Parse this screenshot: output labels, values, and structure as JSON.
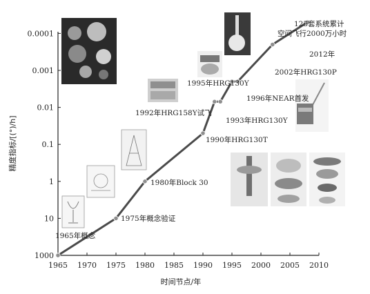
{
  "chart_data": {
    "type": "line",
    "title": "",
    "xlabel": "时间节点/年",
    "ylabel": "精度指标/[(°)/h]",
    "x_ticks": [
      "1965",
      "1970",
      "1975",
      "1980",
      "1985",
      "1990",
      "1995",
      "2000",
      "2005",
      "2010"
    ],
    "y_ticks": [
      "0.0001",
      "0.001",
      "0.01",
      "0.1",
      "1",
      "10",
      "1000"
    ],
    "y_scale": "log (reversed: higher precision upward)",
    "xlim": [
      1965,
      2010
    ],
    "grid": false,
    "colors": {
      "line": "#4a4a4a",
      "marker": "#8f8f8f",
      "text": "#222222"
    },
    "series": [
      {
        "values": [
          {
            "x": 1965,
            "y": 100
          },
          {
            "x": 1975,
            "y": 10
          },
          {
            "x": 1980,
            "y": 1
          },
          {
            "x": 1990,
            "y": 0.05
          },
          {
            "x": 1992,
            "y": 0.007
          },
          {
            "x": 1993,
            "y": 0.007
          },
          {
            "x": 1995,
            "y": 0.002
          },
          {
            "x": 1996,
            "y": 0.002
          },
          {
            "x": 2002,
            "y": 0.0002
          },
          {
            "x": 2008,
            "y": 5e-05
          }
        ]
      }
    ],
    "annotations": [
      {
        "text": "1965年概念"
      },
      {
        "text": "1975年概念验证"
      },
      {
        "text": "1980年Block 30"
      },
      {
        "text": "1990年HRG130T"
      },
      {
        "text": "1992年HRG158Y试飞"
      },
      {
        "text": "1993年HRG130Y"
      },
      {
        "text": "1995年HRG130Y"
      },
      {
        "text": "1996年NEAR首发"
      },
      {
        "text": "2002年HRG130P"
      },
      {
        "text": "2012年"
      },
      {
        "text": "125套系统累计"
      },
      {
        "text": "空间飞行2000万小时"
      }
    ],
    "images": [
      {
        "icon": "goblet-prototype-photo"
      },
      {
        "icon": "gyro-sketch-photo"
      },
      {
        "icon": "gyro-drawing-photo"
      },
      {
        "icon": "hrg158y-unit-photo"
      },
      {
        "icon": "hrg130y-unit-photo"
      },
      {
        "icon": "rocket-launch-photo"
      },
      {
        "icon": "planets-collage-photo"
      },
      {
        "icon": "near-spacecraft-photo"
      },
      {
        "icon": "hrg-components-photo"
      }
    ]
  }
}
